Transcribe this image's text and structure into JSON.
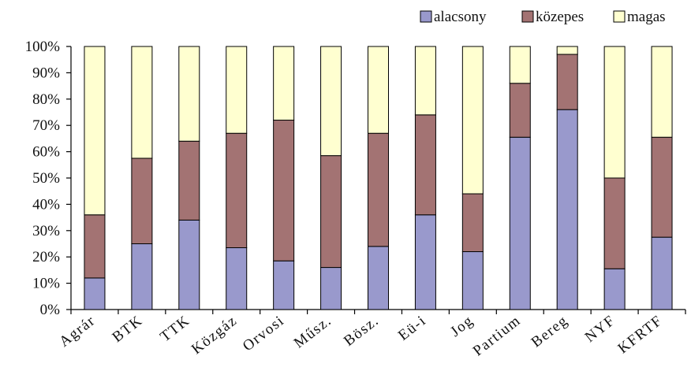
{
  "chart_data": {
    "type": "bar",
    "stacked": true,
    "categories": [
      "Agrár",
      "BTK",
      "TTK",
      "Közgáz",
      "Orvosi",
      "Műsz.",
      "Bösz.",
      "Eü-i",
      "Jog",
      "Partium",
      "Bereg",
      "NYF",
      "KFRTF"
    ],
    "series": [
      {
        "name": "alacsony",
        "color": "#9999cc",
        "values": [
          12,
          25,
          34,
          23.5,
          18.5,
          16,
          24,
          36,
          22,
          65.5,
          76,
          15.5,
          27.5
        ]
      },
      {
        "name": "közepes",
        "color": "#a37373",
        "values": [
          24,
          32.5,
          30,
          43.5,
          53.5,
          42.5,
          43,
          38,
          22,
          20.5,
          21,
          34.5,
          38
        ]
      },
      {
        "name": "magas",
        "color": "#ffffd0",
        "values": [
          64,
          42.5,
          36,
          33,
          28,
          41.5,
          33,
          26,
          56,
          14,
          3,
          50,
          34.5
        ]
      }
    ],
    "y_ticks": [
      "0%",
      "10%",
      "20%",
      "30%",
      "40%",
      "50%",
      "60%",
      "70%",
      "80%",
      "90%",
      "100%"
    ],
    "ylim": [
      0,
      100
    ],
    "grid": false,
    "legend_position": "top-right"
  }
}
